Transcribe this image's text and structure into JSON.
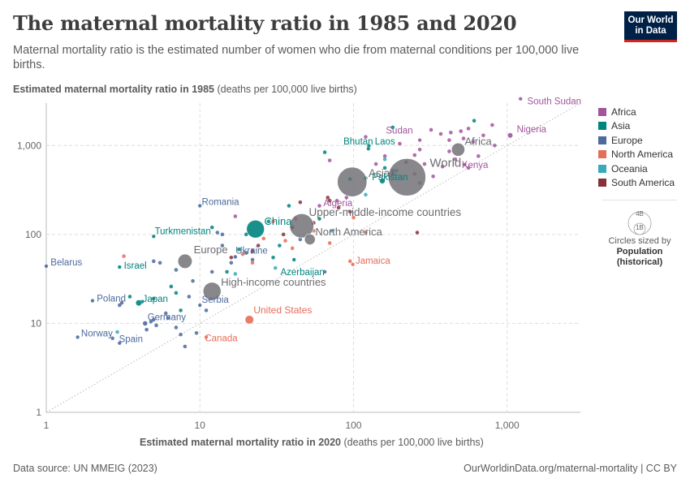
{
  "header": {
    "title": "The maternal mortality ratio in 1985 and 2020",
    "subtitle": "Maternal mortality ratio is the estimated number of women who die from maternal conditions per 100,000 live births.",
    "logo_line1": "Our World",
    "logo_line2": "in Data"
  },
  "footer": {
    "source": "Data source: UN MMEIG (2023)",
    "url": "OurWorldinData.org/maternal-mortality | CC BY"
  },
  "colors": {
    "Africa": "#a2559c",
    "Asia": "#00847e",
    "Europe": "#4c6a9c",
    "North America": "#e56e5a",
    "Oceania": "#38aaba",
    "South America": "#883039",
    "Aggregate": "#6d6d73"
  },
  "legend": {
    "items": [
      "Africa",
      "Asia",
      "Europe",
      "North America",
      "Oceania",
      "South America"
    ],
    "size_big": "4B",
    "size_small": "1B",
    "size_line1": "Circles sized by",
    "size_line2": "Population",
    "size_line3": "(historical)"
  },
  "chart_data": {
    "type": "scatter",
    "title": "The maternal mortality ratio in 1985 and 2020",
    "xlabel_bold": "Estimated maternal mortality ratio in 2020",
    "xlabel_rest": " (deaths per 100,000 live births)",
    "ylabel_bold": "Estimated maternal mortality ratio in 1985",
    "ylabel_rest": " (deaths per 100,000 live births)",
    "x_scale": "log",
    "y_scale": "log",
    "xlim": [
      1,
      3000
    ],
    "ylim": [
      1,
      3000
    ],
    "x_ticks": [
      1,
      10,
      100,
      1000
    ],
    "x_tick_labels": [
      "1",
      "10",
      "100",
      "1,000"
    ],
    "y_ticks": [
      1,
      10,
      100,
      1000
    ],
    "y_tick_labels": [
      "1",
      "10",
      "100",
      "1,000"
    ],
    "reference_line": "x = y",
    "labeled_points": [
      {
        "name": "South Sudan",
        "x": 1223,
        "y": 3350,
        "group": "Africa",
        "pop": 0.005
      },
      {
        "name": "Nigeria",
        "x": 1047,
        "y": 1300,
        "group": "Africa",
        "pop": 0.09
      },
      {
        "name": "Sudan",
        "x": 270,
        "y": 1150,
        "group": "Africa",
        "pop": 0.03
      },
      {
        "name": "Africa",
        "x": 480,
        "y": 900,
        "group": "Aggregate",
        "pop": 0.6
      },
      {
        "name": "Kenya",
        "x": 530,
        "y": 610,
        "group": "Africa",
        "pop": 0.025
      },
      {
        "name": "Bhutan",
        "x": 125,
        "y": 920,
        "group": "Asia",
        "pop": 0.001
      },
      {
        "name": "Laos",
        "x": 126,
        "y": 990,
        "group": "Asia",
        "pop": 0.004
      },
      {
        "name": "Asia",
        "x": 98,
        "y": 390,
        "group": "Aggregate",
        "pop": 3.0
      },
      {
        "name": "World",
        "x": 223,
        "y": 440,
        "group": "Aggregate",
        "pop": 4.8
      },
      {
        "name": "Pakistan",
        "x": 154,
        "y": 400,
        "group": "Asia",
        "pop": 0.1
      },
      {
        "name": "Algeria",
        "x": 78,
        "y": 240,
        "group": "Africa",
        "pop": 0.022
      },
      {
        "name": "Romania",
        "x": 10,
        "y": 210,
        "group": "Europe",
        "pop": 0.023
      },
      {
        "name": "China",
        "x": 23,
        "y": 115,
        "group": "Asia",
        "pop": 1.06
      },
      {
        "name": "Upper-middle-income countries",
        "x": 46,
        "y": 125,
        "group": "Aggregate",
        "pop": 2.0
      },
      {
        "name": "North America",
        "x": 52,
        "y": 88,
        "group": "Aggregate",
        "pop": 0.4
      },
      {
        "name": "Turkmenistan",
        "x": 5,
        "y": 95,
        "group": "Asia",
        "pop": 0.003
      },
      {
        "name": "Ukraine",
        "x": 17,
        "y": 56,
        "group": "Europe",
        "pop": 0.05
      },
      {
        "name": "Europe",
        "x": 8,
        "y": 50,
        "group": "Aggregate",
        "pop": 0.7
      },
      {
        "name": "Azerbaijan",
        "x": 41,
        "y": 52,
        "group": "Asia",
        "pop": 0.007
      },
      {
        "name": "Jamaica",
        "x": 99,
        "y": 46,
        "group": "North America",
        "pop": 0.002
      },
      {
        "name": "Belarus",
        "x": 1,
        "y": 44,
        "group": "Europe",
        "pop": 0.01
      },
      {
        "name": "Israel",
        "x": 3,
        "y": 43,
        "group": "Asia",
        "pop": 0.004
      },
      {
        "name": "High-income countries",
        "x": 12,
        "y": 23,
        "group": "Aggregate",
        "pop": 1.1
      },
      {
        "name": "Poland",
        "x": 2,
        "y": 18,
        "group": "Europe",
        "pop": 0.037
      },
      {
        "name": "Japan",
        "x": 4,
        "y": 17,
        "group": "Asia",
        "pop": 0.12
      },
      {
        "name": "Serbia",
        "x": 10,
        "y": 16,
        "group": "Europe",
        "pop": 0.008
      },
      {
        "name": "Germany",
        "x": 4.4,
        "y": 10,
        "group": "Europe",
        "pop": 0.078
      },
      {
        "name": "United States",
        "x": 21,
        "y": 11,
        "group": "North America",
        "pop": 0.24
      },
      {
        "name": "Norway",
        "x": 1.6,
        "y": 7,
        "group": "Europe",
        "pop": 0.004
      },
      {
        "name": "Spain",
        "x": 3,
        "y": 6,
        "group": "Europe",
        "pop": 0.038
      },
      {
        "name": "Canada",
        "x": 11,
        "y": 7,
        "group": "North America",
        "pop": 0.026
      }
    ],
    "other_points": [
      {
        "x": 560,
        "y": 1550,
        "group": "Africa"
      },
      {
        "x": 700,
        "y": 1300,
        "group": "Africa"
      },
      {
        "x": 600,
        "y": 1100,
        "group": "Africa"
      },
      {
        "x": 320,
        "y": 1500,
        "group": "Africa"
      },
      {
        "x": 370,
        "y": 1350,
        "group": "Africa"
      },
      {
        "x": 430,
        "y": 1400,
        "group": "Africa"
      },
      {
        "x": 520,
        "y": 1200,
        "group": "Africa"
      },
      {
        "x": 800,
        "y": 1700,
        "group": "Africa"
      },
      {
        "x": 830,
        "y": 1000,
        "group": "Africa"
      },
      {
        "x": 270,
        "y": 900,
        "group": "Africa"
      },
      {
        "x": 460,
        "y": 700,
        "group": "Africa"
      },
      {
        "x": 380,
        "y": 580,
        "group": "Africa"
      },
      {
        "x": 330,
        "y": 450,
        "group": "Africa"
      },
      {
        "x": 560,
        "y": 560,
        "group": "Africa"
      },
      {
        "x": 220,
        "y": 650,
        "group": "Africa"
      },
      {
        "x": 180,
        "y": 520,
        "group": "Africa"
      },
      {
        "x": 250,
        "y": 780,
        "group": "Africa"
      },
      {
        "x": 140,
        "y": 620,
        "group": "Africa"
      },
      {
        "x": 290,
        "y": 620,
        "group": "Africa"
      },
      {
        "x": 420,
        "y": 860,
        "group": "Africa"
      },
      {
        "x": 650,
        "y": 760,
        "group": "Africa"
      },
      {
        "x": 200,
        "y": 1050,
        "group": "Africa"
      },
      {
        "x": 160,
        "y": 760,
        "group": "Africa"
      },
      {
        "x": 120,
        "y": 1250,
        "group": "Africa"
      },
      {
        "x": 90,
        "y": 260,
        "group": "Africa"
      },
      {
        "x": 70,
        "y": 680,
        "group": "Africa"
      },
      {
        "x": 17,
        "y": 160,
        "group": "Africa"
      },
      {
        "x": 60,
        "y": 210,
        "group": "Africa"
      },
      {
        "x": 420,
        "y": 1150,
        "group": "Africa"
      },
      {
        "x": 500,
        "y": 1450,
        "group": "Africa"
      },
      {
        "x": 180,
        "y": 1600,
        "group": "Asia"
      },
      {
        "x": 610,
        "y": 1900,
        "group": "Asia"
      },
      {
        "x": 180,
        "y": 480,
        "group": "Asia"
      },
      {
        "x": 160,
        "y": 560,
        "group": "Asia"
      },
      {
        "x": 120,
        "y": 430,
        "group": "Asia"
      },
      {
        "x": 95,
        "y": 420,
        "group": "Asia"
      },
      {
        "x": 65,
        "y": 840,
        "group": "Asia"
      },
      {
        "x": 60,
        "y": 150,
        "group": "Asia"
      },
      {
        "x": 38,
        "y": 210,
        "group": "Asia"
      },
      {
        "x": 33,
        "y": 75,
        "group": "Asia"
      },
      {
        "x": 30,
        "y": 55,
        "group": "Asia"
      },
      {
        "x": 28,
        "y": 140,
        "group": "Asia"
      },
      {
        "x": 20,
        "y": 100,
        "group": "Asia"
      },
      {
        "x": 18,
        "y": 68,
        "group": "Asia"
      },
      {
        "x": 15,
        "y": 38,
        "group": "Asia"
      },
      {
        "x": 12,
        "y": 120,
        "group": "Asia"
      },
      {
        "x": 7,
        "y": 22,
        "group": "Asia"
      },
      {
        "x": 6.5,
        "y": 26,
        "group": "Asia"
      },
      {
        "x": 5,
        "y": 19,
        "group": "Asia"
      },
      {
        "x": 7.5,
        "y": 14,
        "group": "Asia"
      },
      {
        "x": 3.5,
        "y": 20,
        "group": "Asia"
      },
      {
        "x": 4.2,
        "y": 17.5,
        "group": "Asia"
      },
      {
        "x": 3,
        "y": 16,
        "group": "Europe"
      },
      {
        "x": 5,
        "y": 50,
        "group": "Europe"
      },
      {
        "x": 5.5,
        "y": 48,
        "group": "Europe"
      },
      {
        "x": 7,
        "y": 40,
        "group": "Europe"
      },
      {
        "x": 6,
        "y": 13,
        "group": "Europe"
      },
      {
        "x": 5,
        "y": 11,
        "group": "Europe"
      },
      {
        "x": 7,
        "y": 9,
        "group": "Europe"
      },
      {
        "x": 4.5,
        "y": 8.5,
        "group": "Europe"
      },
      {
        "x": 2.7,
        "y": 6.8,
        "group": "Europe"
      },
      {
        "x": 8,
        "y": 5.5,
        "group": "Europe"
      },
      {
        "x": 9,
        "y": 30,
        "group": "Europe"
      },
      {
        "x": 12,
        "y": 38,
        "group": "Europe"
      },
      {
        "x": 13,
        "y": 105,
        "group": "Europe"
      },
      {
        "x": 14,
        "y": 75,
        "group": "Europe"
      },
      {
        "x": 16,
        "y": 48,
        "group": "Europe"
      },
      {
        "x": 20,
        "y": 62,
        "group": "Europe"
      },
      {
        "x": 11,
        "y": 14,
        "group": "Europe"
      },
      {
        "x": 8.5,
        "y": 20,
        "group": "Europe"
      },
      {
        "x": 7.5,
        "y": 7.5,
        "group": "Europe"
      },
      {
        "x": 5.2,
        "y": 9.5,
        "group": "Europe"
      },
      {
        "x": 4.8,
        "y": 10.5,
        "group": "Europe"
      },
      {
        "x": 9.5,
        "y": 7.8,
        "group": "Europe"
      },
      {
        "x": 6.2,
        "y": 11.5,
        "group": "Europe"
      },
      {
        "x": 3.1,
        "y": 17,
        "group": "Europe"
      },
      {
        "x": 45,
        "y": 88,
        "group": "Europe"
      },
      {
        "x": 22,
        "y": 52,
        "group": "Europe"
      },
      {
        "x": 65,
        "y": 38,
        "group": "Europe"
      },
      {
        "x": 14,
        "y": 100,
        "group": "Europe"
      },
      {
        "x": 19,
        "y": 60,
        "group": "North America"
      },
      {
        "x": 26,
        "y": 90,
        "group": "North America"
      },
      {
        "x": 40,
        "y": 70,
        "group": "North America"
      },
      {
        "x": 55,
        "y": 110,
        "group": "North America"
      },
      {
        "x": 70,
        "y": 80,
        "group": "North America"
      },
      {
        "x": 95,
        "y": 50,
        "group": "North America"
      },
      {
        "x": 100,
        "y": 155,
        "group": "North America"
      },
      {
        "x": 120,
        "y": 105,
        "group": "North America"
      },
      {
        "x": 42,
        "y": 150,
        "group": "North America"
      },
      {
        "x": 30,
        "y": 140,
        "group": "North America"
      },
      {
        "x": 36,
        "y": 85,
        "group": "North America"
      },
      {
        "x": 250,
        "y": 480,
        "group": "North America"
      },
      {
        "x": 22,
        "y": 48,
        "group": "North America"
      },
      {
        "x": 3.2,
        "y": 57,
        "group": "North America"
      },
      {
        "x": 270,
        "y": 380,
        "group": "North America"
      },
      {
        "x": 2.9,
        "y": 8,
        "group": "Oceania"
      },
      {
        "x": 17,
        "y": 36,
        "group": "Oceania"
      },
      {
        "x": 31,
        "y": 42,
        "group": "Oceania"
      },
      {
        "x": 72,
        "y": 110,
        "group": "Oceania"
      },
      {
        "x": 120,
        "y": 280,
        "group": "Oceania"
      },
      {
        "x": 160,
        "y": 700,
        "group": "Oceania"
      },
      {
        "x": 190,
        "y": 520,
        "group": "Oceania"
      },
      {
        "x": 24,
        "y": 75,
        "group": "South America"
      },
      {
        "x": 35,
        "y": 100,
        "group": "South America"
      },
      {
        "x": 45,
        "y": 230,
        "group": "South America"
      },
      {
        "x": 55,
        "y": 135,
        "group": "South America"
      },
      {
        "x": 68,
        "y": 260,
        "group": "South America"
      },
      {
        "x": 80,
        "y": 200,
        "group": "South America"
      },
      {
        "x": 95,
        "y": 180,
        "group": "South America"
      },
      {
        "x": 22,
        "y": 65,
        "group": "South America"
      },
      {
        "x": 260,
        "y": 105,
        "group": "South America"
      },
      {
        "x": 70,
        "y": 240,
        "group": "South America"
      },
      {
        "x": 40,
        "y": 120,
        "group": "South America"
      },
      {
        "x": 16,
        "y": 55,
        "group": "South America"
      }
    ]
  }
}
